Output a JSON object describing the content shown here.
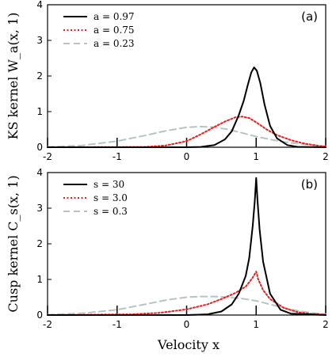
{
  "xlabel": "Velocity x",
  "colors": {
    "black": "#000000",
    "red": "#e8201f",
    "gray": "#b7c4c4"
  },
  "chart_data": [
    {
      "type": "line",
      "panel_tag": "(a)",
      "ylabel": "KS kernel W_a(x, 1)",
      "xlim": [
        -2,
        2
      ],
      "ylim": [
        0,
        4
      ],
      "x_ticks": [
        "-2",
        "-1",
        "0",
        "1",
        "2"
      ],
      "y_ticks": [
        "0",
        "1",
        "2",
        "3",
        "4"
      ],
      "legend_position": "top-left",
      "series": [
        {
          "name": "a = 0.97",
          "style": "solid",
          "color": "black",
          "points": [
            [
              -2,
              0
            ],
            [
              0,
              0
            ],
            [
              0.2,
              0.01
            ],
            [
              0.4,
              0.06
            ],
            [
              0.55,
              0.22
            ],
            [
              0.65,
              0.45
            ],
            [
              0.75,
              0.9
            ],
            [
              0.82,
              1.3
            ],
            [
              0.88,
              1.75
            ],
            [
              0.93,
              2.1
            ],
            [
              0.97,
              2.24
            ],
            [
              1.01,
              2.15
            ],
            [
              1.06,
              1.8
            ],
            [
              1.12,
              1.2
            ],
            [
              1.2,
              0.6
            ],
            [
              1.3,
              0.25
            ],
            [
              1.45,
              0.06
            ],
            [
              1.6,
              0.01
            ],
            [
              2,
              0
            ]
          ]
        },
        {
          "name": "a = 0.75",
          "style": "dotted",
          "color": "red",
          "points": [
            [
              -2,
              0
            ],
            [
              -0.6,
              0.01
            ],
            [
              -0.3,
              0.05
            ],
            [
              0,
              0.17
            ],
            [
              0.2,
              0.36
            ],
            [
              0.4,
              0.57
            ],
            [
              0.55,
              0.72
            ],
            [
              0.7,
              0.84
            ],
            [
              0.8,
              0.86
            ],
            [
              0.9,
              0.82
            ],
            [
              1.0,
              0.7
            ],
            [
              1.15,
              0.5
            ],
            [
              1.3,
              0.34
            ],
            [
              1.5,
              0.2
            ],
            [
              1.7,
              0.1
            ],
            [
              1.9,
              0.04
            ],
            [
              2,
              0.02
            ]
          ]
        },
        {
          "name": "a = 0.23",
          "style": "dashed",
          "color": "gray",
          "points": [
            [
              -2,
              0.01
            ],
            [
              -1.5,
              0.05
            ],
            [
              -1.0,
              0.17
            ],
            [
              -0.6,
              0.33
            ],
            [
              -0.3,
              0.46
            ],
            [
              0,
              0.56
            ],
            [
              0.2,
              0.58
            ],
            [
              0.4,
              0.56
            ],
            [
              0.6,
              0.5
            ],
            [
              0.8,
              0.4
            ],
            [
              1.0,
              0.3
            ],
            [
              1.2,
              0.22
            ],
            [
              1.4,
              0.15
            ],
            [
              1.6,
              0.1
            ],
            [
              1.8,
              0.06
            ],
            [
              2,
              0.03
            ]
          ]
        }
      ]
    },
    {
      "type": "line",
      "panel_tag": "(b)",
      "ylabel": "Cusp kernel C_s(x, 1)",
      "xlim": [
        -2,
        2
      ],
      "ylim": [
        0,
        4
      ],
      "x_ticks": [
        "-2",
        "-1",
        "0",
        "1",
        "2"
      ],
      "y_ticks": [
        "0",
        "1",
        "2",
        "3",
        "4"
      ],
      "legend_position": "top-left",
      "series": [
        {
          "name": "s = 30",
          "style": "solid",
          "color": "black",
          "points": [
            [
              -2,
              0
            ],
            [
              0,
              0
            ],
            [
              0.3,
              0.02
            ],
            [
              0.5,
              0.1
            ],
            [
              0.65,
              0.3
            ],
            [
              0.75,
              0.6
            ],
            [
              0.85,
              1.1
            ],
            [
              0.9,
              1.6
            ],
            [
              0.95,
              2.5
            ],
            [
              0.98,
              3.2
            ],
            [
              1.0,
              3.85
            ],
            [
              1.02,
              3.2
            ],
            [
              1.05,
              2.4
            ],
            [
              1.1,
              1.5
            ],
            [
              1.2,
              0.6
            ],
            [
              1.35,
              0.15
            ],
            [
              1.5,
              0.04
            ],
            [
              2,
              0
            ]
          ]
        },
        {
          "name": "s = 3.0",
          "style": "dotted",
          "color": "red",
          "points": [
            [
              -2,
              0
            ],
            [
              -0.8,
              0.02
            ],
            [
              -0.4,
              0.06
            ],
            [
              0,
              0.16
            ],
            [
              0.3,
              0.3
            ],
            [
              0.5,
              0.45
            ],
            [
              0.7,
              0.62
            ],
            [
              0.85,
              0.8
            ],
            [
              0.95,
              1.05
            ],
            [
              1.0,
              1.22
            ],
            [
              1.03,
              1.0
            ],
            [
              1.1,
              0.7
            ],
            [
              1.2,
              0.45
            ],
            [
              1.4,
              0.2
            ],
            [
              1.6,
              0.08
            ],
            [
              1.8,
              0.03
            ],
            [
              2,
              0.01
            ]
          ]
        },
        {
          "name": "s = 0.3",
          "style": "dashed",
          "color": "gray",
          "points": [
            [
              -2,
              0.01
            ],
            [
              -1.5,
              0.05
            ],
            [
              -1.0,
              0.15
            ],
            [
              -0.6,
              0.3
            ],
            [
              -0.3,
              0.42
            ],
            [
              0,
              0.5
            ],
            [
              0.2,
              0.52
            ],
            [
              0.4,
              0.52
            ],
            [
              0.6,
              0.5
            ],
            [
              0.8,
              0.46
            ],
            [
              1.0,
              0.4
            ],
            [
              1.2,
              0.3
            ],
            [
              1.4,
              0.2
            ],
            [
              1.6,
              0.12
            ],
            [
              1.8,
              0.06
            ],
            [
              2,
              0.03
            ]
          ]
        }
      ]
    }
  ]
}
